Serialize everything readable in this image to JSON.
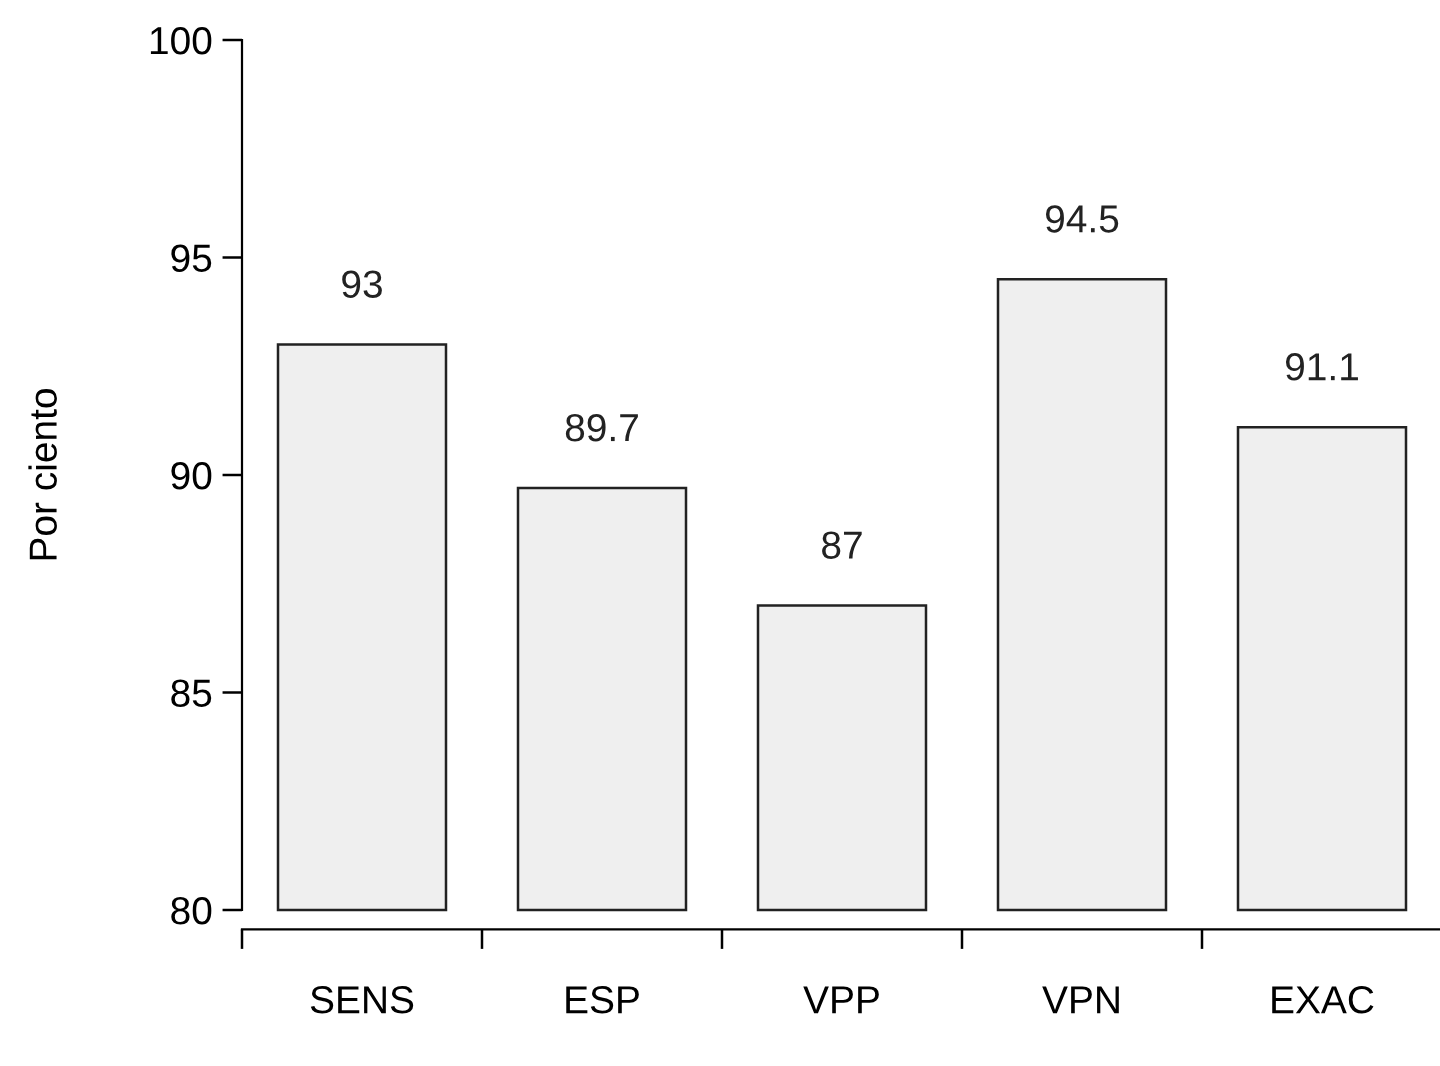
{
  "chart_data": {
    "type": "bar",
    "ylabel": "Por ciento",
    "categories": [
      "SENS",
      "ESP",
      "VPP",
      "VPN",
      "EXAC"
    ],
    "values": [
      93,
      89.7,
      87,
      94.5,
      91.1
    ],
    "color": "#efefef",
    "ylim": [
      80,
      100
    ],
    "yticks": [
      80,
      85,
      90,
      95,
      100
    ],
    "data_labels": true,
    "grid": false
  }
}
